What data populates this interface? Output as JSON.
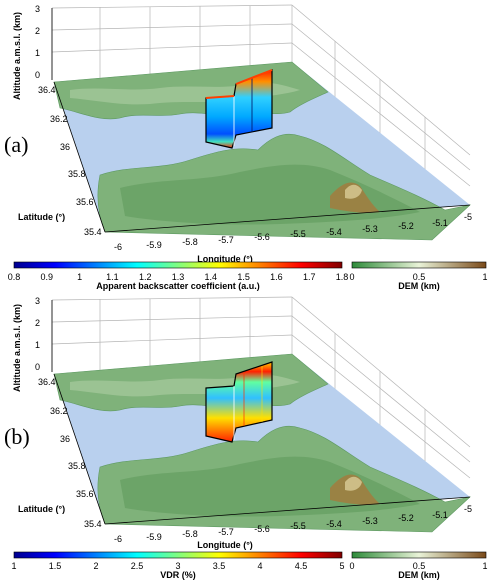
{
  "panels": [
    {
      "label": "(a)",
      "z_axis": {
        "label": "Altitude a.m.s.l. (km)",
        "ticks": [
          "0",
          "1",
          "2",
          "3"
        ]
      },
      "lat_axis": {
        "label": "Latitude (°)",
        "ticks": [
          "36.4",
          "36.2",
          "36",
          "35.8",
          "35.6",
          "35.4"
        ]
      },
      "lon_axis": {
        "label": "Longitude (°)",
        "ticks": [
          "-6",
          "-5.9",
          "-5.8",
          "-5.7",
          "-5.6",
          "-5.5",
          "-5.4",
          "-5.3",
          "-5.2",
          "-5.1",
          "-5"
        ]
      },
      "colorbar": {
        "label": "Apparent backscatter coefficient (a.u.)",
        "ticks": [
          "0.8",
          "0.9",
          "1",
          "1.1",
          "1.2",
          "1.3",
          "1.4",
          "1.5",
          "1.6",
          "1.7",
          "1.8"
        ],
        "colormap": "jet"
      },
      "dem_colorbar": {
        "label": "DEM (km)",
        "ticks": [
          "0",
          "0.5",
          "1"
        ]
      }
    },
    {
      "label": "(b)",
      "z_axis": {
        "label": "Altitude a.m.s.l. (km)",
        "ticks": [
          "0",
          "1",
          "2",
          "3"
        ]
      },
      "lat_axis": {
        "label": "Latitude (°)",
        "ticks": [
          "36.4",
          "36.2",
          "36",
          "35.8",
          "35.6",
          "35.4"
        ]
      },
      "lon_axis": {
        "label": "Longitude (°)",
        "ticks": [
          "-6",
          "-5.9",
          "-5.8",
          "-5.7",
          "-5.6",
          "-5.5",
          "-5.4",
          "-5.3",
          "-5.2",
          "-5.1",
          "-5"
        ]
      },
      "colorbar": {
        "label": "VDR (%)",
        "ticks": [
          "1",
          "1.5",
          "2",
          "2.5",
          "3",
          "3.5",
          "4",
          "4.5",
          "5"
        ],
        "colormap": "jet"
      },
      "dem_colorbar": {
        "label": "DEM (km)",
        "ticks": [
          "0",
          "0.5",
          "1"
        ]
      }
    }
  ],
  "colors": {
    "sea": "#b9d0ee",
    "land": "#7fb27a",
    "land_dark": "#5e9a62",
    "relief": "#9a7a3c",
    "relief_light": "#d6c892",
    "grid": "#c8c8c8",
    "frame": "#000000",
    "dem_low": "#2e8b3a",
    "dem_mid": "#e9f3d8",
    "dem_high": "#7a4a1a",
    "jet": [
      "#00008f",
      "#0000ff",
      "#0080ff",
      "#00ffff",
      "#80ff80",
      "#ffff00",
      "#ff8000",
      "#ff0000",
      "#800000"
    ]
  }
}
